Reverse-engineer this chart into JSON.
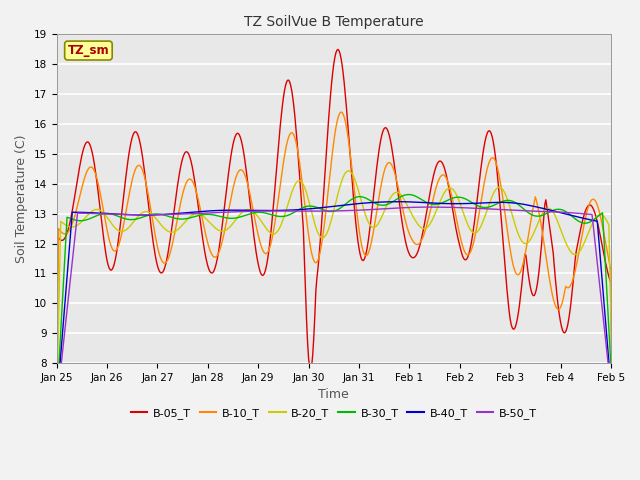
{
  "title": "TZ SoilVue B Temperature",
  "xlabel": "Time",
  "ylabel": "Soil Temperature (C)",
  "ylim": [
    8.0,
    19.0
  ],
  "yticks": [
    8.0,
    9.0,
    10.0,
    11.0,
    12.0,
    13.0,
    14.0,
    15.0,
    16.0,
    17.0,
    18.0,
    19.0
  ],
  "legend_label": "TZ_sm",
  "legend_colors": [
    "#dd0000",
    "#ff8800",
    "#cccc00",
    "#00bb00",
    "#0000cc",
    "#9933cc"
  ],
  "legend_labels": [
    "B-05_T",
    "B-10_T",
    "B-20_T",
    "B-30_T",
    "B-40_T",
    "B-50_T"
  ],
  "tick_labels": [
    "Jan 25",
    "Jan 26",
    "Jan 27",
    "Jan 28",
    "Jan 29",
    "Jan 30",
    "Jan 31",
    "Feb 1",
    "Feb 2",
    "Feb 3",
    "Feb 4",
    "Feb 5"
  ],
  "fig_facecolor": "#f2f2f2",
  "ax_facecolor": "#e8e8e8",
  "grid_color": "#ffffff"
}
